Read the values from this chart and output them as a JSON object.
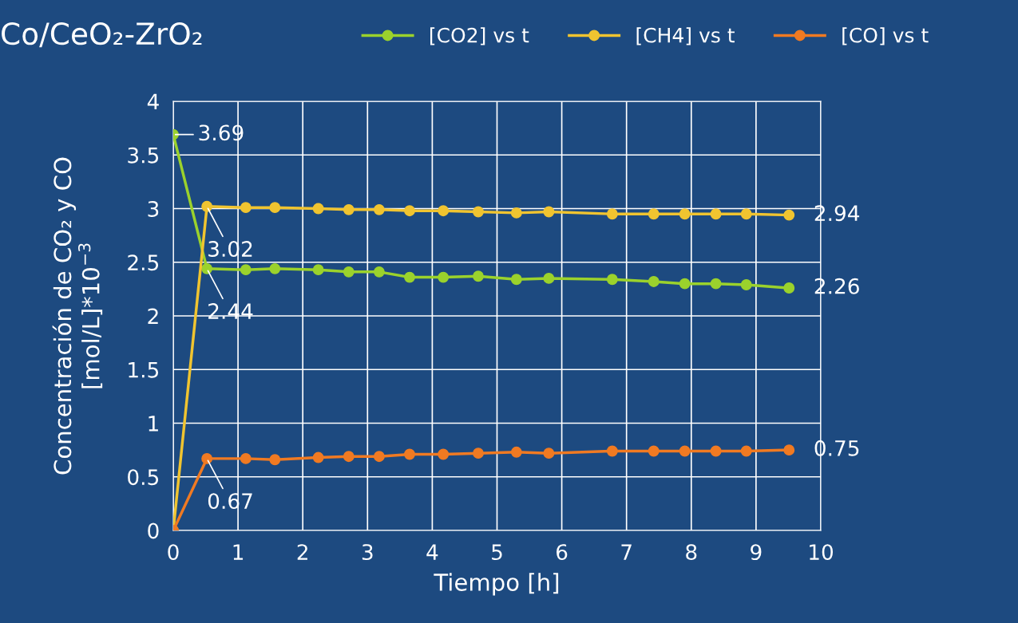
{
  "chart_data": {
    "type": "line",
    "title": "Co/CeO₂-ZrO₂",
    "xlabel": "Tiempo [h]",
    "ylabel": "Concentración de CO₂ y CO\n[mol/L]*10$^{−3}$",
    "x": [
      0,
      0.52,
      1.12,
      1.57,
      2.24,
      2.71,
      3.18,
      3.65,
      4.17,
      4.71,
      5.3,
      5.8,
      6.78,
      7.42,
      7.9,
      8.38,
      8.85,
      9.51
    ],
    "series": [
      {
        "name": "[CO2] vs t",
        "color": "#9bd22c",
        "values": [
          3.69,
          2.44,
          2.43,
          2.44,
          2.43,
          2.41,
          2.41,
          2.36,
          2.36,
          2.37,
          2.34,
          2.35,
          2.34,
          2.32,
          2.3,
          2.3,
          2.29,
          2.26
        ],
        "value_labels": [
          "3.69",
          "2.44",
          null,
          null,
          null,
          null,
          null,
          null,
          null,
          null,
          null,
          null,
          null,
          null,
          null,
          null,
          null,
          "2.26"
        ]
      },
      {
        "name": "[CH4] vs t",
        "color": "#f0c430",
        "values": [
          0,
          3.02,
          3.01,
          3.01,
          3.0,
          2.99,
          2.99,
          2.98,
          2.98,
          2.97,
          2.96,
          2.97,
          2.95,
          2.95,
          2.95,
          2.95,
          2.95,
          2.94
        ],
        "value_labels": [
          null,
          "3.02",
          null,
          null,
          null,
          null,
          null,
          null,
          null,
          null,
          null,
          null,
          null,
          null,
          null,
          null,
          null,
          "2.94"
        ]
      },
      {
        "name": "[CO] vs t",
        "color": "#f07a22",
        "values": [
          0,
          0.67,
          0.67,
          0.66,
          0.68,
          0.69,
          0.69,
          0.71,
          0.71,
          0.72,
          0.73,
          0.72,
          0.74,
          0.74,
          0.74,
          0.74,
          0.74,
          0.75
        ],
        "value_labels": [
          null,
          "0.67",
          null,
          null,
          null,
          null,
          null,
          null,
          null,
          null,
          null,
          null,
          null,
          null,
          null,
          null,
          null,
          "0.75"
        ]
      }
    ],
    "xlim": [
      0,
      10
    ],
    "xticks": [
      0,
      1,
      2,
      3,
      4,
      5,
      6,
      7,
      8,
      9,
      10
    ],
    "ylim": [
      0,
      4
    ],
    "yticks": [
      0,
      0.5,
      1,
      1.5,
      2,
      2.5,
      3,
      3.5,
      4
    ],
    "grid": true,
    "legend": "top",
    "marker": "circle",
    "line_style": "solid"
  }
}
